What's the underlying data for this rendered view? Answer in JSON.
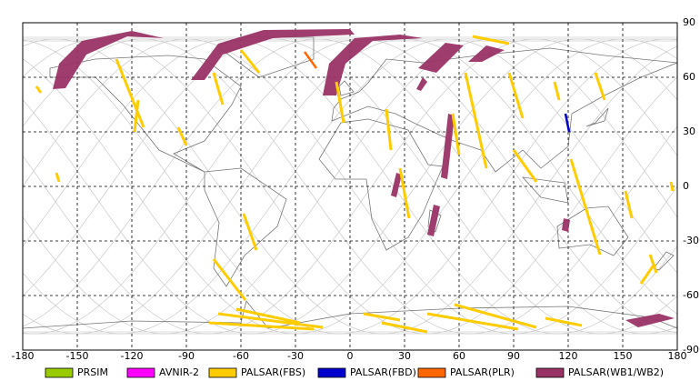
{
  "map": {
    "xlim": [
      -180,
      180
    ],
    "ylim": [
      -90,
      90
    ],
    "xticks": [
      -180,
      -150,
      -120,
      -90,
      -60,
      -30,
      0,
      30,
      60,
      90,
      120,
      150,
      180
    ],
    "yticks": [
      -90,
      -60,
      -30,
      0,
      30,
      60,
      90
    ],
    "grid": true,
    "legend": [
      {
        "name": "PRSIM",
        "color": "#99cc00"
      },
      {
        "name": "AVNIR-2",
        "color": "#ff00ff"
      },
      {
        "name": "PALSAR(FBS)",
        "color": "#ffcc00"
      },
      {
        "name": "PALSAR(FBD)",
        "color": "#0000cc"
      },
      {
        "name": "PALSAR(PLR)",
        "color": "#ff6600"
      },
      {
        "name": "PALSAR(WB1/WB2)",
        "color": "#993366"
      }
    ]
  }
}
